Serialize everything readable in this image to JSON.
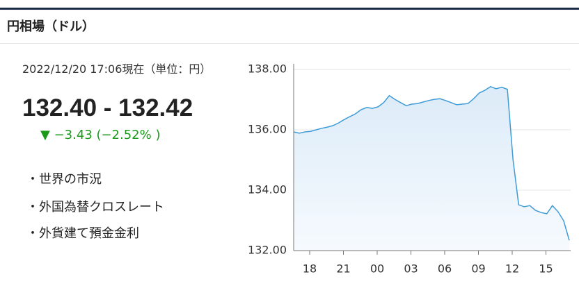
{
  "header": {
    "title": "円相場（ドル）"
  },
  "quote": {
    "timestamp": "2022/12/20 17:06現在（単位：円）",
    "rate": "132.40 - 132.42",
    "change": "▼ −3.43 (−2.52% )"
  },
  "links": [
    "・世界の市況",
    "・外国為替クロスレート",
    "・外貨建て預金金利"
  ],
  "chart_data": {
    "type": "line",
    "color": "#3d9bd6",
    "values": [
      135.93,
      135.89,
      135.93,
      135.95,
      136.0,
      136.05,
      136.09,
      136.14,
      136.23,
      136.34,
      136.44,
      136.53,
      136.67,
      136.74,
      136.71,
      136.76,
      136.9,
      137.13,
      137.01,
      136.9,
      136.8,
      136.85,
      136.87,
      136.92,
      136.97,
      137.01,
      137.03,
      136.97,
      136.9,
      136.83,
      136.85,
      136.87,
      137.03,
      137.22,
      137.31,
      137.43,
      137.36,
      137.41,
      137.34,
      135.01,
      133.52,
      133.45,
      133.49,
      133.33,
      133.26,
      133.22,
      133.49,
      133.29,
      132.99,
      132.34
    ],
    "ylim": [
      132,
      138
    ],
    "yticks": [
      {
        "value": 132,
        "label": "132.00"
      },
      {
        "value": 134,
        "label": "134.00"
      },
      {
        "value": 136,
        "label": "136.00"
      },
      {
        "value": 138,
        "label": "138.00"
      }
    ],
    "xticks": [
      "18",
      "21",
      "00",
      "03",
      "06",
      "09",
      "12",
      "15"
    ],
    "grid": true
  }
}
